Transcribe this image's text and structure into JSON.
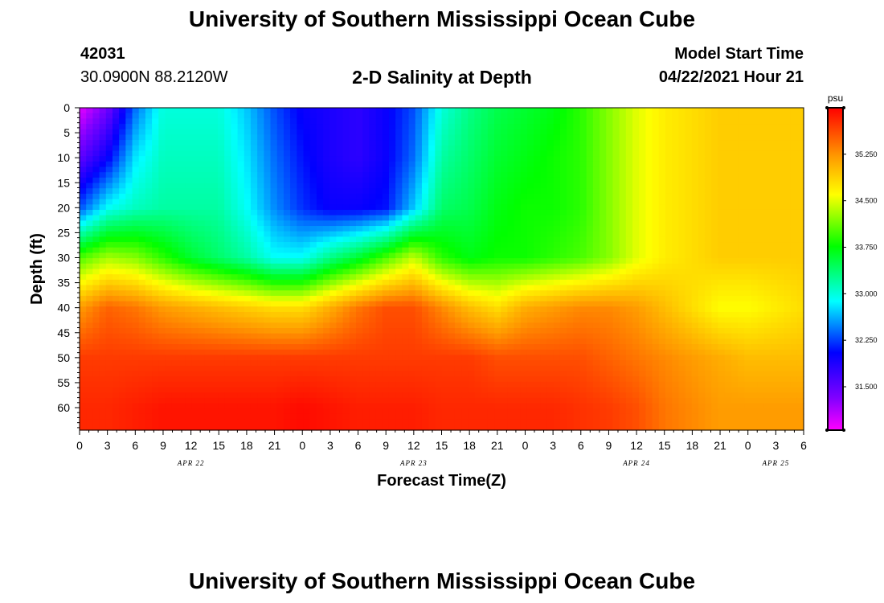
{
  "header": {
    "title": "University of Southern Mississippi Ocean Cube",
    "station_id": "42031",
    "station_coords": "30.0900N  88.2120W",
    "plot_title": "2-D Salinity at Depth",
    "model_start_label": "Model Start Time",
    "model_start_value": "04/22/2021 Hour 21"
  },
  "footer": {
    "title": "University of Southern Mississippi Ocean Cube"
  },
  "chart_data": {
    "type": "heatmap",
    "title": "2-D Salinity at Depth",
    "xlabel": "Forecast Time(Z)",
    "ylabel": "Depth (ft)",
    "colorbar_unit": "psu",
    "x_tick_labels": [
      "0",
      "3",
      "6",
      "9",
      "12",
      "15",
      "18",
      "21",
      "0",
      "3",
      "6",
      "9",
      "12",
      "15",
      "18",
      "21",
      "0",
      "3",
      "6",
      "9",
      "12",
      "15",
      "18",
      "21",
      "0",
      "3",
      "6"
    ],
    "date_labels": [
      {
        "label": "APR 22",
        "hours": 12
      },
      {
        "label": "APR 23",
        "hours": 36
      },
      {
        "label": "APR 24",
        "hours": 60
      },
      {
        "label": "APR 25",
        "hours": 75
      }
    ],
    "x_range_hours": [
      0,
      78
    ],
    "y_ticks": [
      0,
      5,
      10,
      15,
      20,
      25,
      30,
      35,
      40,
      45,
      50,
      55,
      60
    ],
    "ylim": [
      0,
      64.5
    ],
    "colorbar_ticks": [
      31.5,
      32.25,
      33.0,
      33.75,
      34.5,
      35.25
    ],
    "colorbar_tick_labels": [
      "31.500",
      "32.250",
      "33.000",
      "33.750",
      "34.500",
      "35.250"
    ],
    "color_range": [
      30.8,
      36.0
    ],
    "colors": {
      "magenta": "#ff00ff",
      "purple": "#8000ff",
      "blue": "#0000ff",
      "cyan": "#00ffff",
      "green": "#00ff00",
      "yellow": "#ffff00",
      "orange": "#ff9900",
      "red": "#ff0000"
    },
    "grid": {
      "hours": [
        0,
        3,
        6,
        9,
        12,
        15,
        18,
        21,
        24,
        27,
        30,
        33,
        36,
        39,
        42,
        45,
        48,
        51,
        54,
        57,
        60,
        63,
        66,
        69,
        72,
        75,
        78
      ],
      "depths_ft": [
        0,
        10,
        20,
        30,
        40,
        50,
        60,
        64.5
      ],
      "values": [
        [
          30.9,
          31.4,
          32.4,
          33.0,
          33.0,
          33.0,
          32.7,
          32.3,
          32.0,
          31.9,
          31.8,
          32.0,
          32.3,
          33.0,
          33.3,
          33.5,
          33.6,
          33.7,
          33.9,
          34.2,
          34.5,
          34.7,
          34.8,
          34.9,
          34.9,
          34.9,
          34.9
        ],
        [
          31.5,
          32.0,
          32.8,
          33.1,
          33.1,
          33.1,
          32.8,
          32.4,
          32.1,
          31.9,
          31.8,
          32.0,
          32.4,
          33.2,
          33.4,
          33.6,
          33.7,
          33.8,
          33.9,
          34.2,
          34.5,
          34.7,
          34.8,
          34.9,
          34.9,
          34.9,
          34.9
        ],
        [
          32.3,
          32.9,
          33.1,
          33.2,
          33.2,
          33.2,
          32.9,
          32.5,
          32.2,
          32.0,
          32.0,
          32.1,
          32.7,
          33.4,
          33.5,
          33.7,
          33.8,
          33.8,
          33.9,
          34.2,
          34.5,
          34.7,
          34.8,
          34.9,
          34.9,
          34.9,
          34.9
        ],
        [
          34.0,
          34.3,
          34.2,
          33.9,
          33.6,
          33.4,
          33.2,
          32.9,
          32.9,
          33.3,
          33.6,
          34.0,
          34.4,
          33.9,
          33.7,
          33.8,
          33.8,
          33.9,
          34.0,
          34.2,
          34.5,
          34.7,
          34.8,
          34.9,
          34.9,
          34.9,
          34.9
        ],
        [
          35.2,
          35.5,
          35.4,
          35.2,
          35.1,
          35.0,
          34.9,
          34.8,
          34.8,
          35.1,
          35.4,
          35.6,
          35.6,
          35.3,
          35.0,
          34.8,
          35.1,
          35.2,
          35.3,
          35.3,
          35.2,
          35.0,
          34.8,
          34.6,
          34.6,
          34.7,
          34.8
        ],
        [
          35.7,
          35.7,
          35.7,
          35.7,
          35.7,
          35.7,
          35.7,
          35.7,
          35.7,
          35.7,
          35.7,
          35.7,
          35.7,
          35.7,
          35.7,
          35.6,
          35.6,
          35.6,
          35.6,
          35.5,
          35.4,
          35.3,
          35.2,
          35.1,
          35.0,
          35.0,
          35.0
        ],
        [
          35.8,
          35.8,
          35.85,
          35.9,
          35.9,
          35.9,
          35.9,
          35.9,
          35.95,
          35.9,
          35.85,
          35.85,
          35.85,
          35.8,
          35.8,
          35.8,
          35.8,
          35.8,
          35.75,
          35.7,
          35.6,
          35.4,
          35.3,
          35.2,
          35.2,
          35.2,
          35.2
        ],
        [
          35.8,
          35.8,
          35.85,
          35.9,
          35.9,
          35.9,
          35.9,
          35.9,
          35.95,
          35.9,
          35.85,
          35.85,
          35.85,
          35.8,
          35.8,
          35.8,
          35.8,
          35.8,
          35.75,
          35.7,
          35.6,
          35.4,
          35.3,
          35.2,
          35.2,
          35.2,
          35.2
        ]
      ]
    }
  }
}
